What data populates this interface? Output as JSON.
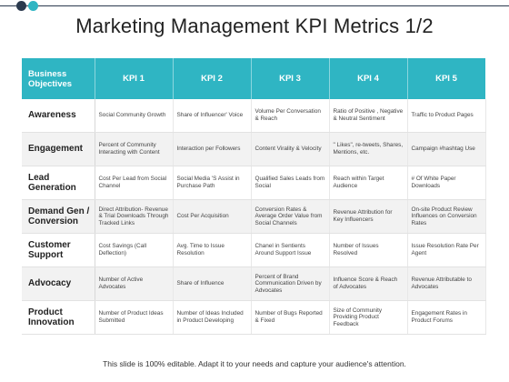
{
  "title": "Marketing Management KPI Metrics 1/2",
  "colors": {
    "accent": "#2fb5c3",
    "dark": "#2b3a4e"
  },
  "table": {
    "headers": [
      "Business Objectives",
      "KPI 1",
      "KPI 2",
      "KPI 3",
      "KPI 4",
      "KPI 5"
    ],
    "rows": [
      {
        "objective": "Awareness",
        "cells": [
          "Social Community Growth",
          "Share of Influencer' Voice",
          "Volume Per Conversation & Reach",
          "Ratio of Positive , Negative & Neutral Sentiment",
          "Traffic to Product Pages"
        ]
      },
      {
        "objective": "Engagement",
        "cells": [
          "Percent of Community Interacting with Content",
          "Interaction per Followers",
          "Content Virality & Velocity",
          "\" Likes\", re-tweets, Shares, Mentions, etc.",
          "Campaign #hashtag Use"
        ]
      },
      {
        "objective": "Lead Generation",
        "cells": [
          "Cost Per Lead from Social Channel",
          "Social Media 'S Assist in Purchase Path",
          "Qualified Sales Leads from Social",
          "Reach within Target Audience",
          "# Of White Paper Downloads"
        ]
      },
      {
        "objective": "Demand Gen / Conversion",
        "cells": [
          "Direct Attribution- Revenue & Trial Downloads Through Tracked Links",
          "Cost Per Acquisition",
          "Conversion Rates & Average Order Value from Social Channels",
          "Revenue Attribution for Key Influencers",
          "On-site Product Review Influences on Conversion Rates"
        ]
      },
      {
        "objective": "Customer Support",
        "cells": [
          "Cost Savings (Call Deflection)",
          "Avg. Time to Issue Resolution",
          "Chanel in Sentients Around Support Issue",
          "Number of Issues Resolved",
          "Issue Resolution Rate Per Agent"
        ]
      },
      {
        "objective": "Advocacy",
        "cells": [
          "Number of Active Advocates",
          "Share of Influence",
          "Percent of Brand Communication Driven by Advocates",
          "Influence Score & Reach of Advocates",
          "Revenue Attributable to Advocates"
        ]
      },
      {
        "objective": "Product Innovation",
        "cells": [
          "Number of Product Ideas Submitted",
          "Number of Ideas Included in Product Developing",
          "Number of Bugs Reported & Fixed",
          "Size of Community Providing Product Feedback",
          "Engagement Rates in Product Forums"
        ]
      }
    ]
  },
  "footer": "This slide is 100% editable. Adapt it to your needs and capture your audience's attention."
}
